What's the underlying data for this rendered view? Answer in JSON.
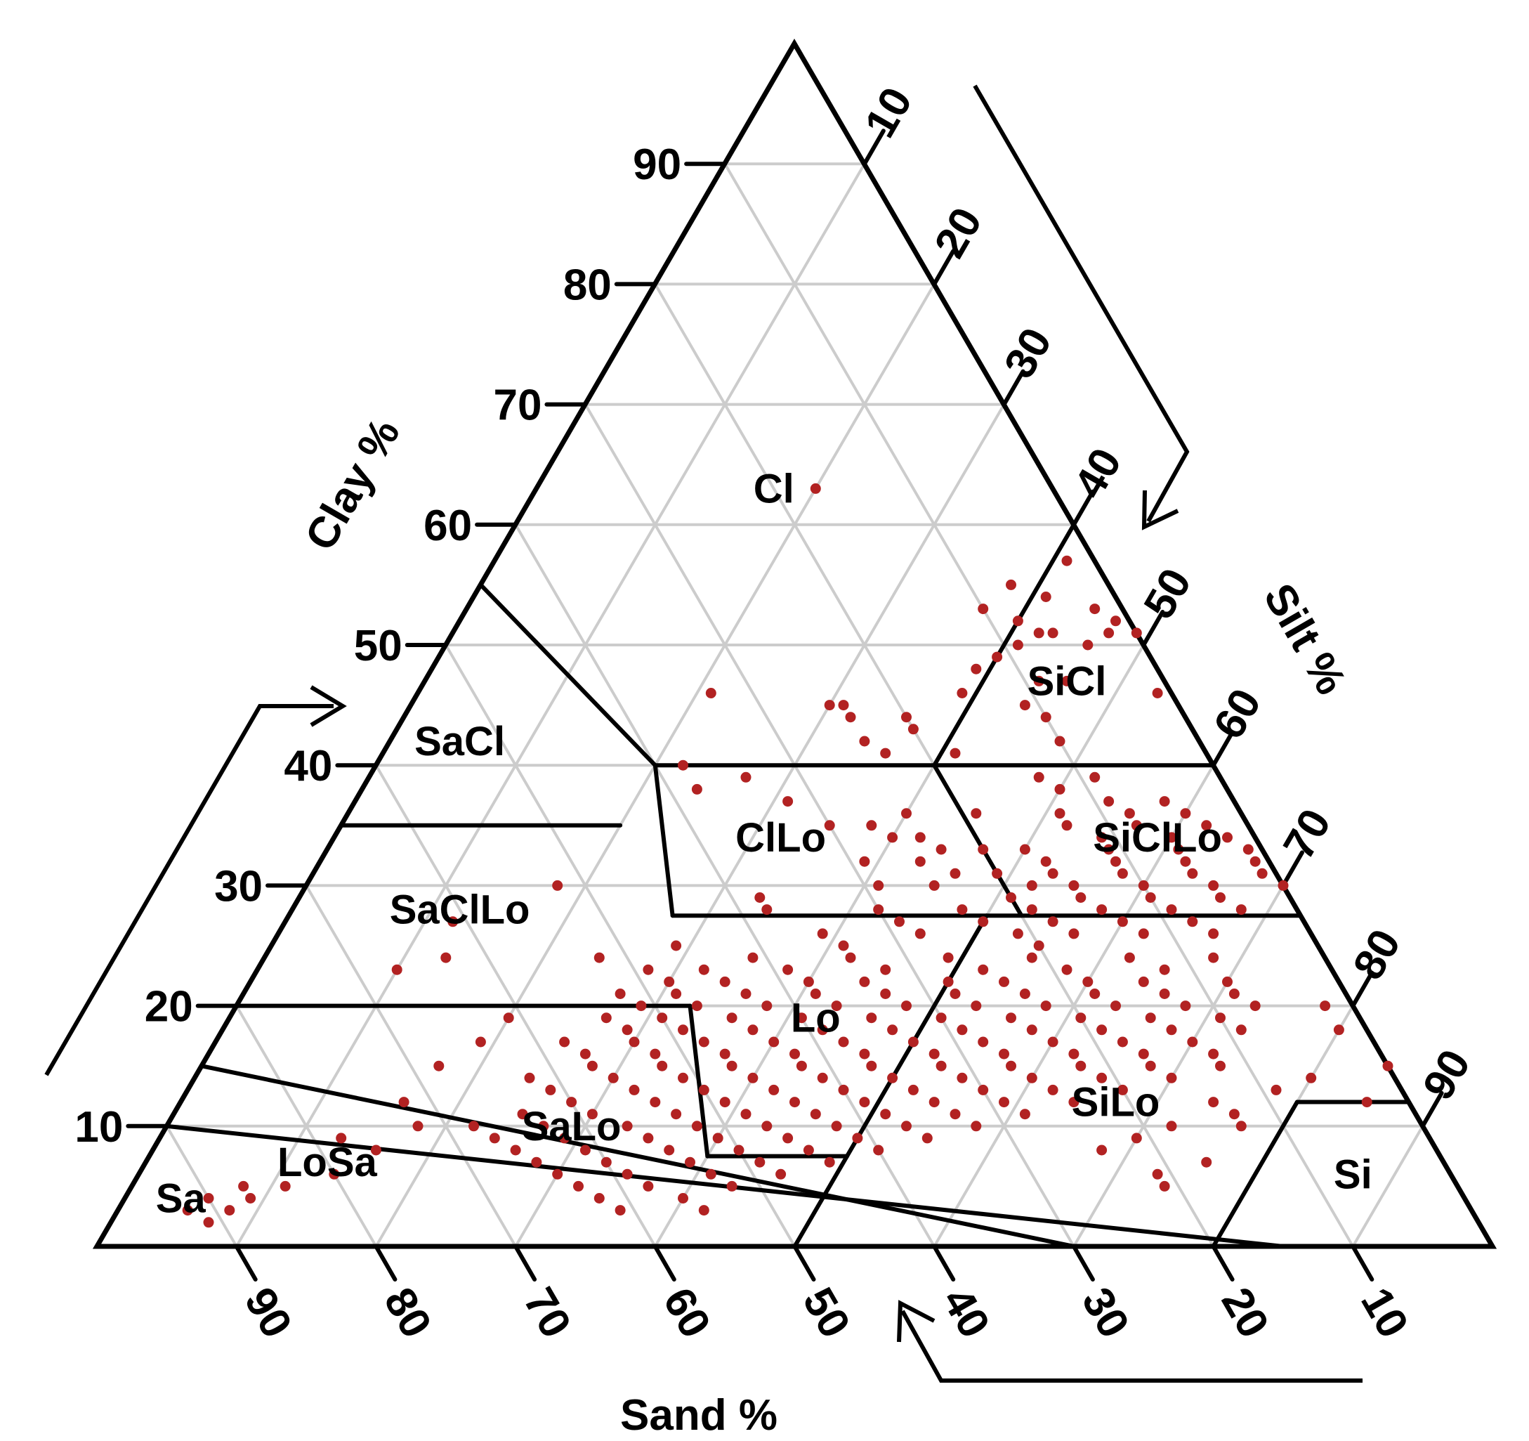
{
  "chart_data": {
    "type": "scatter",
    "subtype": "ternary",
    "axes": {
      "clay": {
        "title": "Clay %",
        "ticks": [
          "10",
          "20",
          "30",
          "40",
          "50",
          "60",
          "70",
          "80",
          "90"
        ]
      },
      "silt": {
        "title": "Silt %",
        "ticks": [
          "10",
          "20",
          "30",
          "40",
          "50",
          "60",
          "70",
          "80",
          "90"
        ]
      },
      "sand": {
        "title": "Sand %",
        "ticks": [
          "90",
          "80",
          "70",
          "60",
          "50",
          "40",
          "30",
          "20",
          "10"
        ]
      }
    },
    "grid": true,
    "colors": {
      "points": "#b22222",
      "grid": "#cccccc",
      "lines": "#000000"
    },
    "regions": [
      {
        "label": "Cl",
        "pos": {
          "clay": 63,
          "silt": 17
        }
      },
      {
        "label": "SiCl",
        "pos": {
          "clay": 47,
          "silt": 46
        }
      },
      {
        "label": "SaCl",
        "pos": {
          "clay": 42,
          "silt": 5
        }
      },
      {
        "label": "ClLo",
        "pos": {
          "clay": 34,
          "silt": 32
        }
      },
      {
        "label": "SiClLo",
        "pos": {
          "clay": 34,
          "silt": 59
        }
      },
      {
        "label": "SaClLo",
        "pos": {
          "clay": 28,
          "silt": 12
        }
      },
      {
        "label": "Lo",
        "pos": {
          "clay": 19,
          "silt": 42
        }
      },
      {
        "label": "SiLo",
        "pos": {
          "clay": 12,
          "silt": 67
        }
      },
      {
        "label": "SaLo",
        "pos": {
          "clay": 10,
          "silt": 29
        }
      },
      {
        "label": "LoSa",
        "pos": {
          "clay": 7,
          "silt": 13
        }
      },
      {
        "label": "Si",
        "pos": {
          "clay": 6,
          "silt": 87
        }
      },
      {
        "label": "Sa",
        "pos": {
          "clay": 4,
          "silt": 4
        }
      }
    ],
    "points_note": "clay/silt percentages of soil samples; sand = 100 - clay - silt",
    "points": [
      [
        63,
        20
      ],
      [
        57,
        41
      ],
      [
        55,
        38
      ],
      [
        54,
        41
      ],
      [
        53,
        37
      ],
      [
        52,
        40
      ],
      [
        51,
        42
      ],
      [
        51,
        43
      ],
      [
        50,
        41
      ],
      [
        49,
        40
      ],
      [
        47,
        44
      ],
      [
        48,
        39
      ],
      [
        46,
        21
      ],
      [
        46,
        39
      ],
      [
        45,
        30
      ],
      [
        45,
        31
      ],
      [
        44,
        32
      ],
      [
        44,
        36
      ],
      [
        44,
        46
      ],
      [
        43,
        37
      ],
      [
        42,
        34
      ],
      [
        42,
        48
      ],
      [
        41,
        36
      ],
      [
        41,
        41
      ],
      [
        53,
        45
      ],
      [
        52,
        47
      ],
      [
        51,
        47
      ],
      [
        50,
        46
      ],
      [
        51,
        49
      ],
      [
        47,
        46
      ],
      [
        45,
        44
      ],
      [
        46,
        53
      ],
      [
        40,
        22
      ],
      [
        39,
        27
      ],
      [
        38,
        24
      ],
      [
        37,
        31
      ],
      [
        36,
        40
      ],
      [
        36,
        45
      ],
      [
        35,
        35
      ],
      [
        35,
        38
      ],
      [
        34,
        40
      ],
      [
        34,
        42
      ],
      [
        33,
        44
      ],
      [
        33,
        47
      ],
      [
        32,
        39
      ],
      [
        32,
        43
      ],
      [
        31,
        46
      ],
      [
        31,
        49
      ],
      [
        30,
        41
      ],
      [
        30,
        45
      ],
      [
        30,
        52
      ],
      [
        29,
        33
      ],
      [
        28,
        34
      ],
      [
        28,
        42
      ],
      [
        28,
        48
      ],
      [
        27,
        44
      ],
      [
        27,
        50
      ],
      [
        26,
        39
      ],
      [
        26,
        46
      ],
      [
        26,
        53
      ],
      [
        25,
        29
      ],
      [
        25,
        41
      ],
      [
        25,
        55
      ],
      [
        39,
        48
      ],
      [
        39,
        52
      ],
      [
        38,
        50
      ],
      [
        37,
        54
      ],
      [
        37,
        58
      ],
      [
        36,
        51
      ],
      [
        36,
        56
      ],
      [
        36,
        60
      ],
      [
        35,
        52
      ],
      [
        35,
        57
      ],
      [
        35,
        62
      ],
      [
        34,
        55
      ],
      [
        34,
        60
      ],
      [
        34,
        64
      ],
      [
        33,
        50
      ],
      [
        33,
        56
      ],
      [
        33,
        61
      ],
      [
        33,
        66
      ],
      [
        32,
        52
      ],
      [
        32,
        57
      ],
      [
        32,
        62
      ],
      [
        32,
        67
      ],
      [
        31,
        53
      ],
      [
        31,
        58
      ],
      [
        31,
        63
      ],
      [
        31,
        68
      ],
      [
        30,
        55
      ],
      [
        30,
        60
      ],
      [
        30,
        65
      ],
      [
        30,
        70
      ],
      [
        29,
        51
      ],
      [
        29,
        56
      ],
      [
        29,
        61
      ],
      [
        29,
        66
      ],
      [
        28,
        53
      ],
      [
        28,
        58
      ],
      [
        28,
        63
      ],
      [
        28,
        68
      ],
      [
        27,
        55
      ],
      [
        27,
        60
      ],
      [
        27,
        65
      ],
      [
        26,
        57
      ],
      [
        26,
        62
      ],
      [
        26,
        67
      ],
      [
        24,
        24
      ],
      [
        23,
        28
      ],
      [
        23,
        32
      ],
      [
        24,
        35
      ],
      [
        23,
        38
      ],
      [
        24,
        42
      ],
      [
        23,
        45
      ],
      [
        24,
        49
      ],
      [
        23,
        52
      ],
      [
        24,
        55
      ],
      [
        23,
        58
      ],
      [
        24,
        62
      ],
      [
        23,
        65
      ],
      [
        24,
        68
      ],
      [
        22,
        30
      ],
      [
        22,
        34
      ],
      [
        22,
        40
      ],
      [
        22,
        44
      ],
      [
        22,
        50
      ],
      [
        22,
        54
      ],
      [
        22,
        60
      ],
      [
        22,
        64
      ],
      [
        22,
        70
      ],
      [
        21,
        27
      ],
      [
        21,
        31
      ],
      [
        21,
        36
      ],
      [
        21,
        41
      ],
      [
        21,
        46
      ],
      [
        21,
        51
      ],
      [
        21,
        56
      ],
      [
        21,
        61
      ],
      [
        21,
        66
      ],
      [
        21,
        71
      ],
      [
        20,
        29
      ],
      [
        20,
        33
      ],
      [
        20,
        38
      ],
      [
        20,
        43
      ],
      [
        20,
        48
      ],
      [
        20,
        53
      ],
      [
        20,
        58
      ],
      [
        20,
        63
      ],
      [
        20,
        68
      ],
      [
        20,
        73
      ],
      [
        19,
        27
      ],
      [
        19,
        31
      ],
      [
        19,
        36
      ],
      [
        19,
        41
      ],
      [
        19,
        46
      ],
      [
        19,
        51
      ],
      [
        19,
        56
      ],
      [
        19,
        61
      ],
      [
        19,
        66
      ],
      [
        19,
        71
      ],
      [
        18,
        29
      ],
      [
        18,
        33
      ],
      [
        18,
        38
      ],
      [
        18,
        43
      ],
      [
        18,
        48
      ],
      [
        18,
        53
      ],
      [
        18,
        58
      ],
      [
        18,
        63
      ],
      [
        18,
        68
      ],
      [
        18,
        73
      ],
      [
        17,
        25
      ],
      [
        17,
        30
      ],
      [
        17,
        35
      ],
      [
        17,
        40
      ],
      [
        17,
        45
      ],
      [
        17,
        50
      ],
      [
        17,
        55
      ],
      [
        17,
        60
      ],
      [
        17,
        65
      ],
      [
        17,
        70
      ],
      [
        16,
        27
      ],
      [
        16,
        32
      ],
      [
        16,
        37
      ],
      [
        16,
        42
      ],
      [
        16,
        47
      ],
      [
        16,
        52
      ],
      [
        16,
        57
      ],
      [
        16,
        62
      ],
      [
        16,
        67
      ],
      [
        16,
        72
      ],
      [
        15,
        28
      ],
      [
        15,
        33
      ],
      [
        15,
        38
      ],
      [
        15,
        43
      ],
      [
        15,
        48
      ],
      [
        15,
        53
      ],
      [
        15,
        58
      ],
      [
        15,
        63
      ],
      [
        15,
        68
      ],
      [
        15,
        73
      ],
      [
        14,
        24
      ],
      [
        14,
        30
      ],
      [
        14,
        35
      ],
      [
        14,
        40
      ],
      [
        14,
        45
      ],
      [
        14,
        50
      ],
      [
        14,
        55
      ],
      [
        14,
        60
      ],
      [
        14,
        65
      ],
      [
        14,
        70
      ],
      [
        13,
        26
      ],
      [
        13,
        32
      ],
      [
        13,
        37
      ],
      [
        13,
        42
      ],
      [
        13,
        47
      ],
      [
        13,
        52
      ],
      [
        13,
        57
      ],
      [
        13,
        62
      ],
      [
        13,
        67
      ],
      [
        12,
        28
      ],
      [
        12,
        34
      ],
      [
        12,
        39
      ],
      [
        12,
        44
      ],
      [
        12,
        49
      ],
      [
        12,
        54
      ],
      [
        12,
        59
      ],
      [
        12,
        64
      ],
      [
        11,
        25
      ],
      [
        11,
        30
      ],
      [
        11,
        36
      ],
      [
        11,
        41
      ],
      [
        11,
        46
      ],
      [
        11,
        51
      ],
      [
        11,
        56
      ],
      [
        11,
        61
      ],
      [
        10,
        22
      ],
      [
        10,
        27
      ],
      [
        10,
        33
      ],
      [
        10,
        38
      ],
      [
        10,
        43
      ],
      [
        10,
        48
      ],
      [
        10,
        53
      ],
      [
        10,
        58
      ],
      [
        9,
        24
      ],
      [
        9,
        29
      ],
      [
        9,
        35
      ],
      [
        9,
        40
      ],
      [
        9,
        45
      ],
      [
        9,
        50
      ],
      [
        9,
        55
      ],
      [
        8,
        26
      ],
      [
        8,
        31
      ],
      [
        8,
        37
      ],
      [
        8,
        42
      ],
      [
        8,
        47
      ],
      [
        8,
        52
      ],
      [
        7,
        28
      ],
      [
        7,
        33
      ],
      [
        7,
        39
      ],
      [
        7,
        44
      ],
      [
        7,
        49
      ],
      [
        6,
        30
      ],
      [
        6,
        35
      ],
      [
        6,
        41
      ],
      [
        6,
        46
      ],
      [
        5,
        32
      ],
      [
        5,
        37
      ],
      [
        5,
        43
      ],
      [
        4,
        34
      ],
      [
        4,
        40
      ],
      [
        3,
        36
      ],
      [
        3,
        42
      ],
      [
        19,
        20
      ],
      [
        17,
        19
      ],
      [
        15,
        17
      ],
      [
        12,
        16
      ],
      [
        10,
        18
      ],
      [
        9,
        13
      ],
      [
        8,
        16
      ],
      [
        6,
        14
      ],
      [
        5,
        11
      ],
      [
        4,
        9
      ],
      [
        5,
        8
      ],
      [
        4,
        6
      ],
      [
        3,
        5
      ],
      [
        3,
        8
      ],
      [
        2,
        7
      ],
      [
        24,
        13
      ],
      [
        27,
        12
      ],
      [
        23,
        10
      ],
      [
        30,
        18
      ],
      [
        12,
        74
      ],
      [
        11,
        76
      ],
      [
        10,
        72
      ],
      [
        13,
        78
      ],
      [
        9,
        70
      ],
      [
        8,
        68
      ],
      [
        7,
        76
      ],
      [
        6,
        73
      ],
      [
        18,
        80
      ],
      [
        20,
        78
      ],
      [
        14,
        80
      ],
      [
        10,
        77
      ],
      [
        5,
        74
      ],
      [
        15,
        85
      ],
      [
        12,
        85
      ]
    ]
  }
}
